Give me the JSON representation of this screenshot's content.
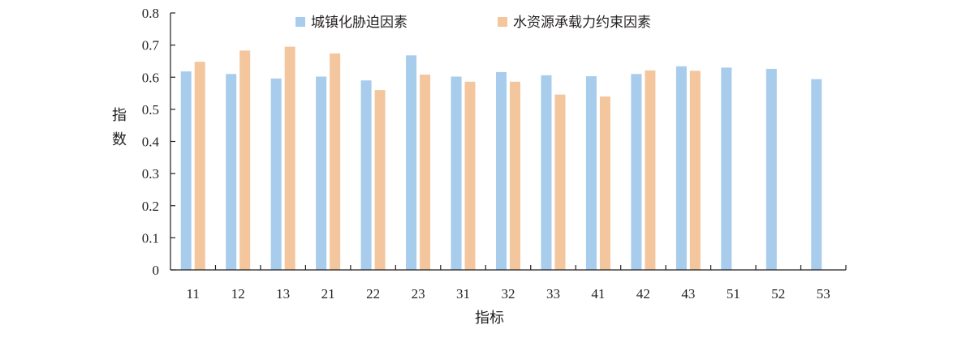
{
  "chart_data": {
    "type": "bar",
    "title": "",
    "xlabel": "指标",
    "ylabel": "指数",
    "ylim": [
      0,
      0.8
    ],
    "yticks": [
      "0",
      "0.1",
      "0.2",
      "0.3",
      "0.4",
      "0.5",
      "0.6",
      "0.7",
      "0.8"
    ],
    "categories": [
      "11",
      "12",
      "13",
      "21",
      "22",
      "23",
      "31",
      "32",
      "33",
      "41",
      "42",
      "43",
      "51",
      "52",
      "53"
    ],
    "series": [
      {
        "name": "城镇化胁迫因素",
        "color": "#a8ccec",
        "values": [
          0.618,
          0.61,
          0.596,
          0.602,
          0.59,
          0.668,
          0.602,
          0.616,
          0.606,
          0.603,
          0.61,
          0.634,
          0.63,
          0.626,
          0.594
        ]
      },
      {
        "name": "水资源承载力约束因素",
        "color": "#f4c69d",
        "values": [
          0.648,
          0.683,
          0.695,
          0.674,
          0.56,
          0.608,
          0.586,
          0.586,
          0.546,
          0.54,
          0.621,
          0.62,
          null,
          null,
          null
        ]
      }
    ],
    "legend_position": "top",
    "grid": false
  }
}
